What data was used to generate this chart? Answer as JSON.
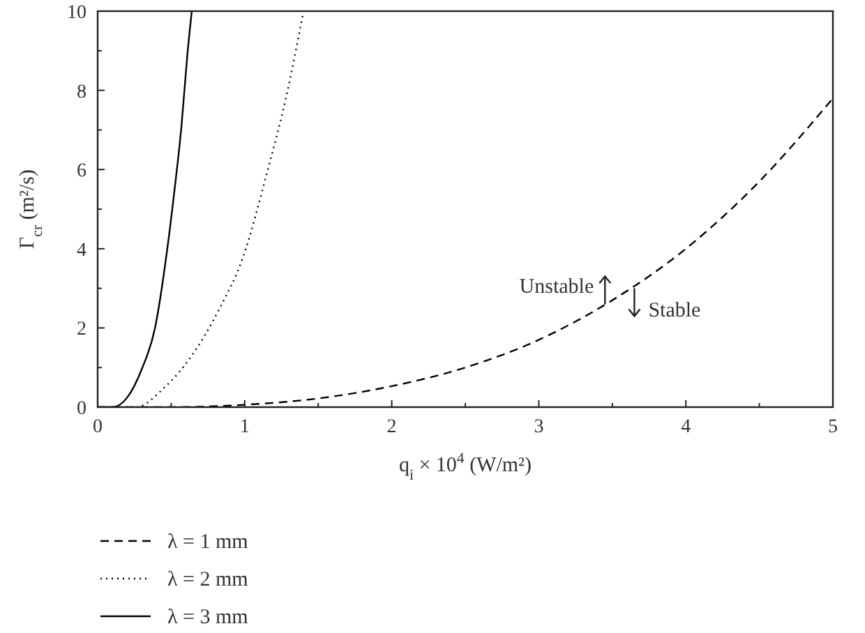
{
  "chart_data": {
    "type": "line",
    "xlabel": "q$_{i}$ × 10$^{4}$ (W/m²)",
    "ylabel": "Γ$_{cr}$ (m²/s)",
    "xlim": [
      0,
      5
    ],
    "ylim": [
      0,
      10
    ],
    "xticks": [
      0,
      {
        "value": 0.5,
        "label": null
      },
      1,
      {
        "value": 1.5,
        "label": null
      },
      2,
      {
        "value": 2.5,
        "label": null
      },
      3,
      {
        "value": 3.5,
        "label": null
      },
      4,
      {
        "value": 4.5,
        "label": null
      },
      5
    ],
    "yticks": [
      0,
      {
        "value": 1,
        "label": null
      },
      2,
      {
        "value": 3,
        "label": null
      },
      4,
      {
        "value": 5,
        "label": null
      },
      6,
      {
        "value": 7,
        "label": null
      },
      8,
      {
        "value": 9,
        "label": null
      },
      10
    ],
    "grid": false,
    "legend": "bottom",
    "marker": "none",
    "series": [
      {
        "name": "λ = 1 mm",
        "color": "#000000",
        "line_style": "dashed",
        "x": [
          0,
          0.5,
          1,
          1.5,
          2,
          2.5,
          3,
          3.5,
          4,
          4.5,
          5
        ],
        "values": [
          0,
          0,
          0.06,
          0.22,
          0.53,
          1.0,
          1.7,
          2.7,
          4.0,
          5.7,
          7.8
        ]
      },
      {
        "name": "λ = 2 mm",
        "color": "#000000",
        "line_style": "dotted",
        "x": [
          0,
          0.26,
          0.45,
          0.64,
          0.83,
          0.99,
          1.15,
          1.28,
          1.4
        ],
        "values": [
          0,
          0,
          0.48,
          1.3,
          2.5,
          3.8,
          5.9,
          7.8,
          10
        ]
      },
      {
        "name": "λ = 3 mm",
        "color": "#000000",
        "line_style": "solid",
        "x": [
          0,
          0.1,
          0.2,
          0.3,
          0.39,
          0.47,
          0.52,
          0.57,
          0.61,
          0.64
        ],
        "values": [
          0,
          0,
          0.24,
          0.96,
          2.0,
          3.9,
          5.4,
          7.1,
          8.9,
          10
        ]
      }
    ],
    "annotations": [
      {
        "text": "Unstable",
        "x": 3.45,
        "y": 2.6
      },
      {
        "text": "Stable",
        "x": 3.65,
        "y": 3.0
      }
    ]
  }
}
